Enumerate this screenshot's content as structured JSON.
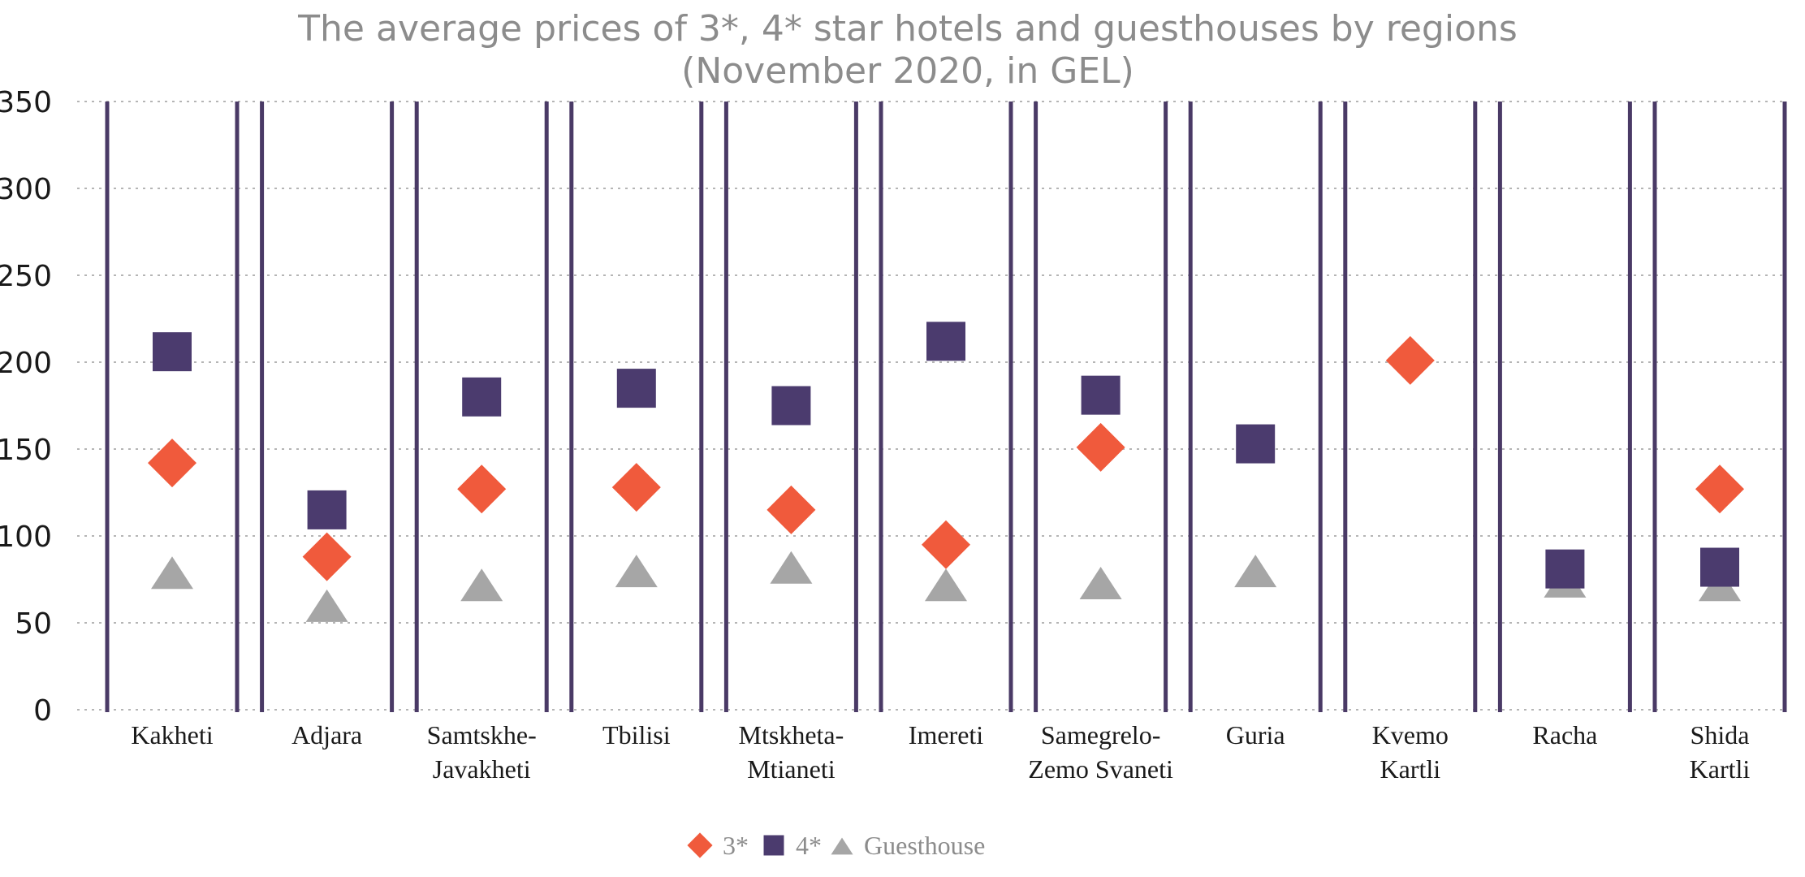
{
  "chart_data": {
    "type": "scatter",
    "title": [
      "The average prices of 3*, 4* star hotels and guesthouses by regions",
      "(November 2020, in GEL)"
    ],
    "categories": [
      [
        "Kakheti"
      ],
      [
        "Adjara"
      ],
      [
        "Samtskhe-",
        "Javakheti"
      ],
      [
        "Tbilisi"
      ],
      [
        "Mtskheta-",
        "Mtianeti"
      ],
      [
        "Imereti"
      ],
      [
        "Samegrelo-",
        "Zemo Svaneti"
      ],
      [
        "Guria"
      ],
      [
        "Kvemo",
        "Kartli"
      ],
      [
        "Racha"
      ],
      [
        "Shida",
        "Kartli"
      ]
    ],
    "series": [
      {
        "name": "3*",
        "marker": "diamond",
        "color": "#f05a3c",
        "values": [
          142,
          88,
          127,
          128,
          115,
          95,
          151,
          null,
          201,
          null,
          127
        ]
      },
      {
        "name": "4*",
        "marker": "square",
        "color": "#4b3b6e",
        "values": [
          206,
          115,
          180,
          185,
          175,
          212,
          181,
          153,
          null,
          81,
          82
        ]
      },
      {
        "name": "Guesthouse",
        "marker": "triangle",
        "color": "#a6a6a6",
        "values": [
          77,
          58,
          70,
          78,
          80,
          70,
          71,
          78,
          null,
          72,
          70
        ]
      }
    ],
    "ylim": [
      0,
      350
    ],
    "yticks": [
      0,
      50,
      100,
      150,
      200,
      250,
      300,
      350
    ],
    "grid": true,
    "legend": "bottom-center"
  }
}
